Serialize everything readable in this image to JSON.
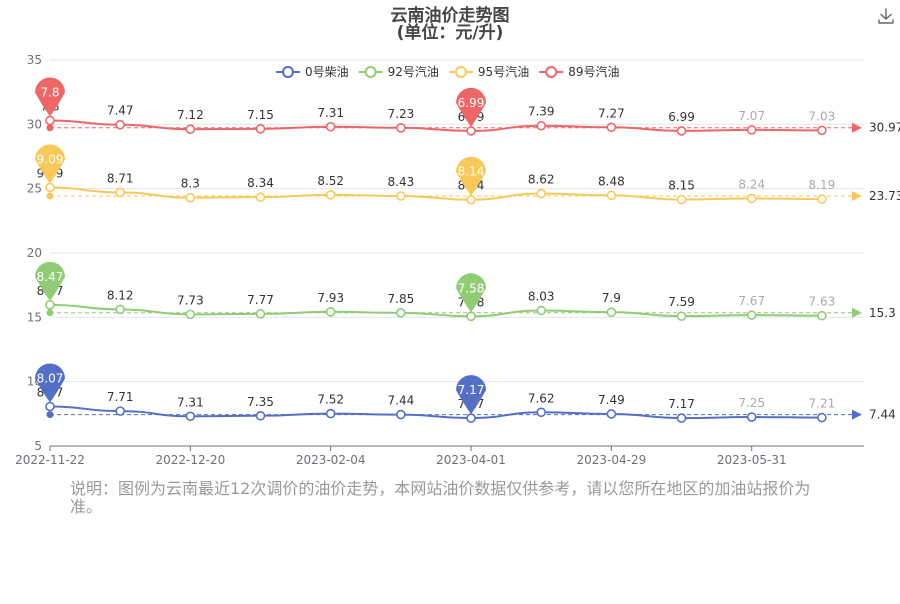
{
  "chart_data": {
    "type": "line",
    "title": "云南油价走势图",
    "subtitle": "(单位：元/升)",
    "ylim": [
      5,
      35
    ],
    "y_ticks": [
      "5",
      "10",
      "15",
      "20",
      "25",
      "30",
      "35"
    ],
    "x_tick_labels": [
      "2022-11-22",
      "2022-12-20",
      "2023-02-04",
      "2023-04-01",
      "2023-04-29",
      "2023-05-31"
    ],
    "x_tick_index": [
      0,
      2,
      4,
      6,
      8,
      10
    ],
    "grid": true,
    "legend_position": "top",
    "series": [
      {
        "name": "0号柴油",
        "color": "#5470c6",
        "values": [
          8.07,
          7.71,
          7.31,
          7.35,
          7.52,
          7.44,
          7.17,
          7.62,
          7.49,
          7.17,
          7.25,
          7.21
        ],
        "max_label": "8.07",
        "min_label": "7.17",
        "avg_label": "7.44"
      },
      {
        "name": "92号汽油",
        "color": "#91cc75",
        "values": [
          8.47,
          8.12,
          7.73,
          7.77,
          7.93,
          7.85,
          7.58,
          8.03,
          7.9,
          7.59,
          7.67,
          7.63
        ],
        "max_label": "8.47",
        "min_label": "7.58",
        "avg_label": "15.3"
      },
      {
        "name": "95号汽油",
        "color": "#fac858",
        "values": [
          9.09,
          8.71,
          8.3,
          8.34,
          8.52,
          8.43,
          8.14,
          8.62,
          8.48,
          8.15,
          8.24,
          8.19
        ],
        "max_label": "9.09",
        "min_label": "8.14",
        "avg_label": "23.73"
      },
      {
        "name": "89号汽油",
        "color": "#ee6666",
        "values": [
          7.8,
          7.47,
          7.12,
          7.15,
          7.31,
          7.23,
          6.99,
          7.39,
          7.27,
          6.99,
          7.07,
          7.03
        ],
        "max_label": "7.8",
        "min_label": "6.99",
        "avg_label": "30.97"
      }
    ]
  },
  "footnote": "说明：图例为云南最近12次调价的油价走势，本网站油价数据仅供参考，请以您所在地区的加油站报价为准。",
  "toolbar": {
    "download_icon": "download-icon"
  }
}
